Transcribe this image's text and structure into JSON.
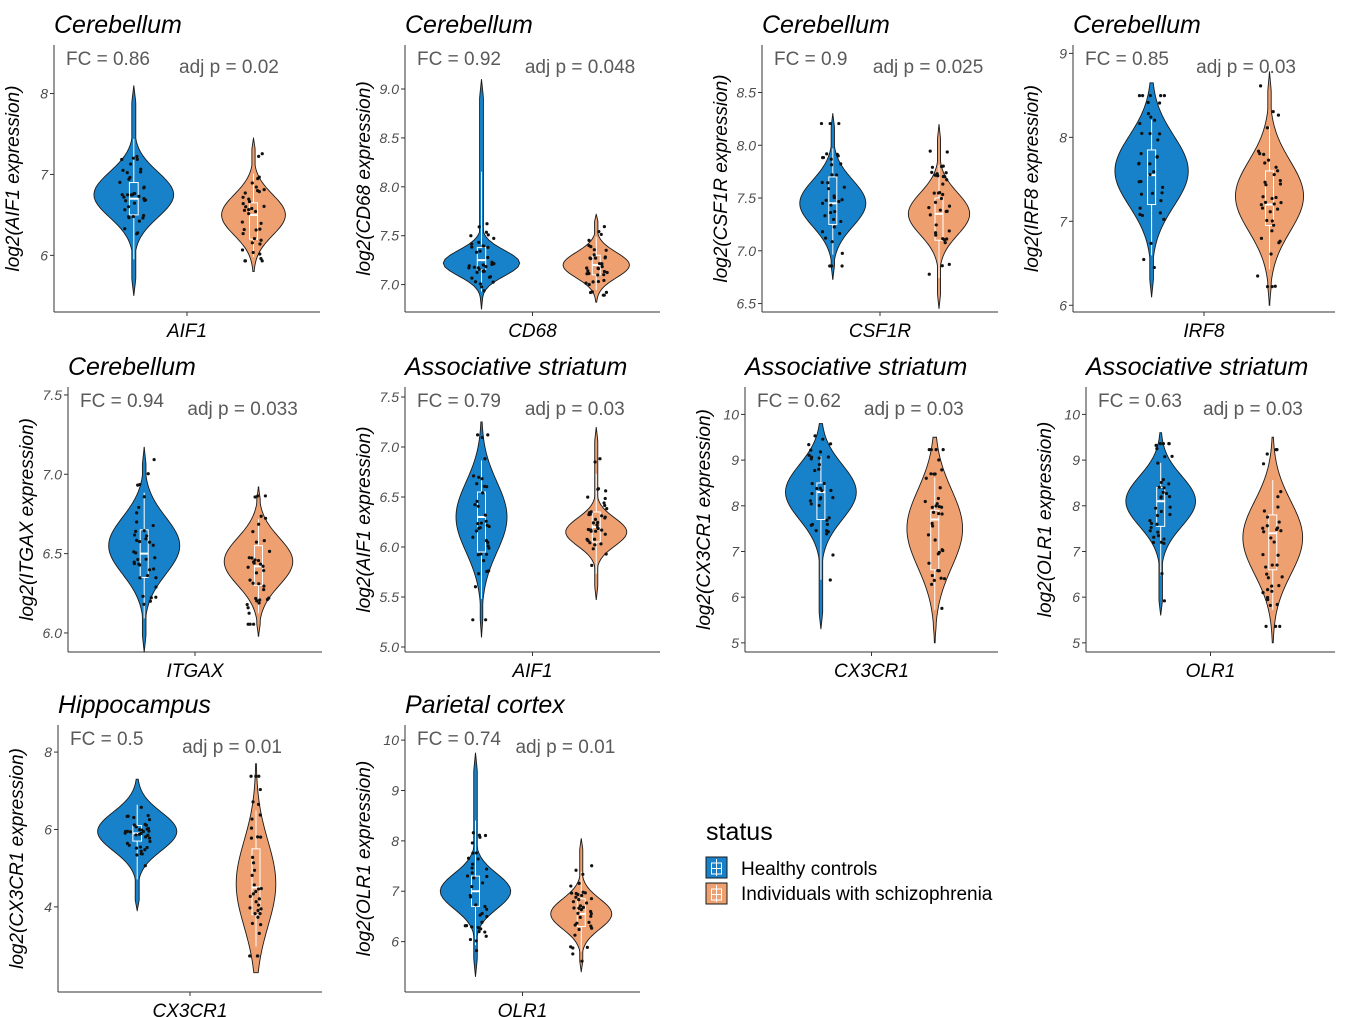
{
  "chart_data": [
    {
      "type": "violin",
      "title": "Cerebellum",
      "xlabel": "AIF1",
      "ylabel": "log2(AIF1 expression)",
      "fc_label": "FC = 0.86",
      "p_label": "adj p = 0.02",
      "ylim": [
        5.3,
        8.6
      ],
      "yticks": [
        6,
        7,
        8
      ],
      "yticklabels": [
        "6",
        "7",
        "8"
      ],
      "groups": [
        {
          "name": "Healthy controls",
          "min": 5.5,
          "max": 8.1,
          "q1": 6.5,
          "median": 6.7,
          "q3": 6.9,
          "mode": 6.75,
          "spread": 0.28,
          "width": 0.3
        },
        {
          "name": "Individuals with schizophrenia",
          "min": 5.8,
          "max": 7.45,
          "q1": 6.2,
          "median": 6.5,
          "q3": 6.65,
          "mode": 6.5,
          "spread": 0.25,
          "width": 0.24
        }
      ]
    },
    {
      "type": "violin",
      "title": "Cerebellum",
      "xlabel": "CD68",
      "ylabel": "log2(CD68 expression)",
      "fc_label": "FC = 0.92",
      "p_label": "adj p = 0.048",
      "ylim": [
        6.72,
        9.45
      ],
      "yticks": [
        7.0,
        7.5,
        8.0,
        8.5,
        9.0
      ],
      "yticklabels": [
        "7.0",
        "7.5",
        "8.0",
        "8.5",
        "9.0"
      ],
      "groups": [
        {
          "name": "Healthy controls",
          "min": 6.75,
          "max": 9.1,
          "q1": 7.15,
          "median": 7.25,
          "q3": 7.38,
          "mode": 7.22,
          "spread": 0.13,
          "width": 0.3
        },
        {
          "name": "Individuals with schizophrenia",
          "min": 6.82,
          "max": 7.72,
          "q1": 7.1,
          "median": 7.2,
          "q3": 7.3,
          "mode": 7.2,
          "spread": 0.13,
          "width": 0.26
        }
      ]
    },
    {
      "type": "violin",
      "title": "Cerebellum",
      "xlabel": "CSF1R",
      "ylabel": "log2(CSF1R expression)",
      "fc_label": "FC = 0.9",
      "p_label": "adj p = 0.025",
      "ylim": [
        6.42,
        8.95
      ],
      "yticks": [
        6.5,
        7.0,
        7.5,
        8.0,
        8.5
      ],
      "yticklabels": [
        "6.5",
        "7.0",
        "7.5",
        "8.0",
        "8.5"
      ],
      "groups": [
        {
          "name": "Healthy controls",
          "min": 6.73,
          "max": 8.3,
          "q1": 7.25,
          "median": 7.45,
          "q3": 7.7,
          "mode": 7.45,
          "spread": 0.22,
          "width": 0.28
        },
        {
          "name": "Individuals with schizophrenia",
          "min": 6.45,
          "max": 8.2,
          "q1": 7.1,
          "median": 7.35,
          "q3": 7.5,
          "mode": 7.35,
          "spread": 0.2,
          "width": 0.26
        }
      ]
    },
    {
      "type": "violin",
      "title": "Cerebellum",
      "xlabel": "IRF8",
      "ylabel": "log2(IRF8 expression)",
      "fc_label": "FC = 0.85",
      "p_label": "adj p = 0.03",
      "ylim": [
        5.92,
        9.1
      ],
      "yticks": [
        6,
        7,
        8,
        9
      ],
      "yticklabels": [
        "6",
        "7",
        "8",
        "9"
      ],
      "groups": [
        {
          "name": "Healthy controls",
          "min": 6.1,
          "max": 8.65,
          "q1": 7.2,
          "median": 7.55,
          "q3": 7.85,
          "mode": 7.6,
          "spread": 0.42,
          "width": 0.28
        },
        {
          "name": "Individuals with schizophrenia",
          "min": 6.0,
          "max": 8.78,
          "q1": 6.95,
          "median": 7.2,
          "q3": 7.6,
          "mode": 7.3,
          "spread": 0.42,
          "width": 0.26
        }
      ]
    },
    {
      "type": "violin",
      "title": "Cerebellum",
      "xlabel": "ITGAX",
      "ylabel": "log2(ITGAX expression)",
      "fc_label": "FC = 0.94",
      "p_label": "adj p = 0.033",
      "ylim": [
        5.88,
        7.55
      ],
      "yticks": [
        6.0,
        6.5,
        7.0,
        7.5
      ],
      "yticklabels": [
        "6.0",
        "6.5",
        "7.0",
        "7.5"
      ],
      "groups": [
        {
          "name": "Healthy controls",
          "min": 5.88,
          "max": 7.17,
          "q1": 6.35,
          "median": 6.5,
          "q3": 6.65,
          "mode": 6.55,
          "spread": 0.18,
          "width": 0.28
        },
        {
          "name": "Individuals with schizophrenia",
          "min": 5.98,
          "max": 6.92,
          "q1": 6.3,
          "median": 6.42,
          "q3": 6.55,
          "mode": 6.45,
          "spread": 0.15,
          "width": 0.27
        }
      ]
    },
    {
      "type": "violin",
      "title": "Associative striatum",
      "xlabel": "AIF1",
      "ylabel": "log2(AIF1 expression)",
      "fc_label": "FC = 0.79",
      "p_label": "adj p = 0.03",
      "ylim": [
        4.95,
        7.6
      ],
      "yticks": [
        5.0,
        5.5,
        6.0,
        6.5,
        7.0,
        7.5
      ],
      "yticklabels": [
        "5.0",
        "5.5",
        "6.0",
        "6.5",
        "7.0",
        "7.5"
      ],
      "groups": [
        {
          "name": "Healthy controls",
          "min": 5.1,
          "max": 7.25,
          "q1": 5.95,
          "median": 6.3,
          "q3": 6.55,
          "mode": 6.3,
          "spread": 0.35,
          "width": 0.2
        },
        {
          "name": "Individuals with schizophrenia",
          "min": 5.47,
          "max": 7.2,
          "q1": 6.05,
          "median": 6.2,
          "q3": 6.35,
          "mode": 6.15,
          "spread": 0.14,
          "width": 0.24
        }
      ]
    },
    {
      "type": "violin",
      "title": "Associative striatum",
      "xlabel": "CX3CR1",
      "ylabel": "log2(CX3CR1 expression)",
      "fc_label": "FC = 0.62",
      "p_label": "adj p = 0.03",
      "ylim": [
        4.8,
        10.6
      ],
      "yticks": [
        5,
        6,
        7,
        8,
        9,
        10
      ],
      "yticklabels": [
        "5",
        "6",
        "7",
        "8",
        "9",
        "10"
      ],
      "groups": [
        {
          "name": "Healthy controls",
          "min": 5.3,
          "max": 9.8,
          "q1": 7.7,
          "median": 8.3,
          "q3": 8.5,
          "mode": 8.3,
          "spread": 0.6,
          "width": 0.28
        },
        {
          "name": "Individuals with schizophrenia",
          "min": 5.0,
          "max": 9.5,
          "q1": 6.6,
          "median": 7.7,
          "q3": 7.9,
          "mode": 7.5,
          "spread": 0.85,
          "width": 0.22
        }
      ]
    },
    {
      "type": "violin",
      "title": "Associative striatum",
      "xlabel": "OLR1",
      "ylabel": "log2(OLR1 expression)",
      "fc_label": "FC = 0.63",
      "p_label": "adj p = 0.03",
      "ylim": [
        4.8,
        10.6
      ],
      "yticks": [
        5,
        6,
        7,
        8,
        9,
        10
      ],
      "yticklabels": [
        "5",
        "6",
        "7",
        "8",
        "9",
        "10"
      ],
      "groups": [
        {
          "name": "Healthy controls",
          "min": 5.6,
          "max": 9.6,
          "q1": 7.55,
          "median": 8.1,
          "q3": 8.4,
          "mode": 8.1,
          "spread": 0.55,
          "width": 0.28
        },
        {
          "name": "Individuals with schizophrenia",
          "min": 5.0,
          "max": 9.5,
          "q1": 6.6,
          "median": 7.4,
          "q3": 7.8,
          "mode": 7.3,
          "spread": 0.8,
          "width": 0.24
        }
      ]
    },
    {
      "type": "violin",
      "title": "Hippocampus",
      "xlabel": "CX3CR1",
      "ylabel": "log2(CX3CR1 expression)",
      "fc_label": "FC = 0.5",
      "p_label": "adj p = 0.01",
      "ylim": [
        1.8,
        8.7
      ],
      "yticks": [
        4,
        6,
        8
      ],
      "yticklabels": [
        "4",
        "6",
        "8"
      ],
      "groups": [
        {
          "name": "Healthy controls",
          "min": 3.9,
          "max": 7.3,
          "q1": 5.7,
          "median": 5.9,
          "q3": 6.1,
          "mode": 5.95,
          "spread": 0.5,
          "width": 0.3
        },
        {
          "name": "Individuals with schizophrenia",
          "min": 2.3,
          "max": 7.7,
          "q1": 3.8,
          "median": 4.5,
          "q3": 5.5,
          "mode": 4.6,
          "spread": 1.1,
          "width": 0.15
        }
      ]
    },
    {
      "type": "violin",
      "title": "Parietal cortex",
      "xlabel": "OLR1",
      "ylabel": "log2(OLR1 expression)",
      "fc_label": "FC = 0.74",
      "p_label": "adj p = 0.01",
      "ylim": [
        5.0,
        10.3
      ],
      "yticks": [
        6,
        7,
        8,
        9,
        10
      ],
      "yticklabels": [
        "6",
        "7",
        "8",
        "9",
        "10"
      ],
      "groups": [
        {
          "name": "Healthy controls",
          "min": 5.3,
          "max": 9.75,
          "q1": 6.7,
          "median": 7.0,
          "q3": 7.3,
          "mode": 7.0,
          "spread": 0.35,
          "width": 0.3
        },
        {
          "name": "Individuals with schizophrenia",
          "min": 5.4,
          "max": 8.05,
          "q1": 6.3,
          "median": 6.55,
          "q3": 6.85,
          "mode": 6.55,
          "spread": 0.3,
          "width": 0.26
        }
      ]
    }
  ],
  "legend": {
    "title": "status",
    "items": [
      {
        "label": "Healthy controls",
        "color": "#1782C9"
      },
      {
        "label": "Individuals with schizophrenia",
        "color": "#EEA070"
      }
    ]
  },
  "colors": {
    "control": "#1782C9",
    "schizophrenia": "#EEA070",
    "outline": "#1a1a1a",
    "points": "#111111"
  }
}
